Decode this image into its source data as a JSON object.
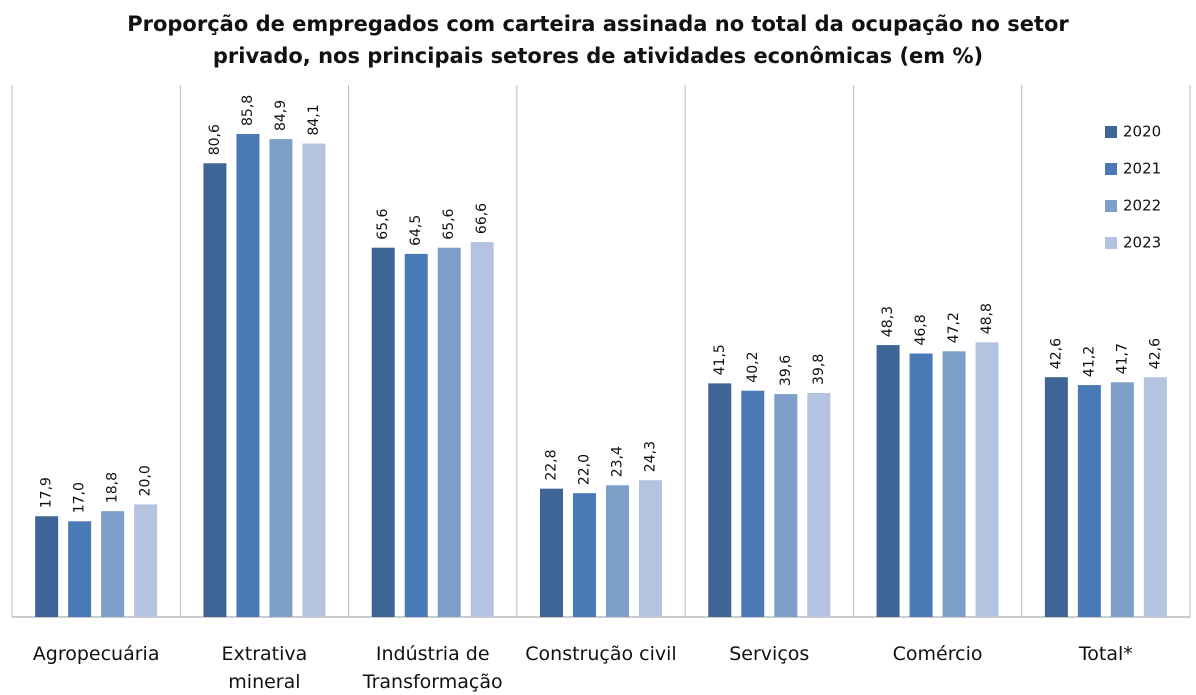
{
  "chart_data": {
    "type": "bar",
    "title": "Proporção de empregados com carteira assinada no total da ocupação no setor privado, nos principais setores de atividades econômicas (em %)",
    "categories": [
      "Agropecuária",
      "Extrativa\nmineral",
      "Indústria de\nTransformação",
      "Construção civil",
      "Serviços",
      "Comércio",
      "Total*"
    ],
    "series": [
      {
        "name": "2020",
        "color": "#3e6596",
        "values": [
          17.9,
          80.6,
          65.6,
          22.8,
          41.5,
          48.3,
          42.6
        ],
        "value_labels": [
          "17,9",
          "80,6",
          "65,6",
          "22,8",
          "41,5",
          "48,3",
          "42,6"
        ]
      },
      {
        "name": "2021",
        "color": "#4a7ab5",
        "values": [
          17.0,
          85.8,
          64.5,
          22.0,
          40.2,
          46.8,
          41.2
        ],
        "value_labels": [
          "17,0",
          "85,8",
          "64,5",
          "22,0",
          "40,2",
          "46,8",
          "41,2"
        ]
      },
      {
        "name": "2022",
        "color": "#7f9fcb",
        "values": [
          18.8,
          84.9,
          65.6,
          23.4,
          39.6,
          47.2,
          41.7
        ],
        "value_labels": [
          "18,8",
          "84,9",
          "65,6",
          "23,4",
          "39,6",
          "47,2",
          "41,7"
        ]
      },
      {
        "name": "2023",
        "color": "#b4c4e0",
        "values": [
          20.0,
          84.1,
          66.6,
          24.3,
          39.8,
          48.8,
          42.6
        ],
        "value_labels": [
          "20,0",
          "84,1",
          "66,6",
          "24,3",
          "39,8",
          "48,8",
          "42,6"
        ]
      }
    ],
    "ylim": [
      0,
      94.5
    ],
    "legend": "top-right"
  }
}
